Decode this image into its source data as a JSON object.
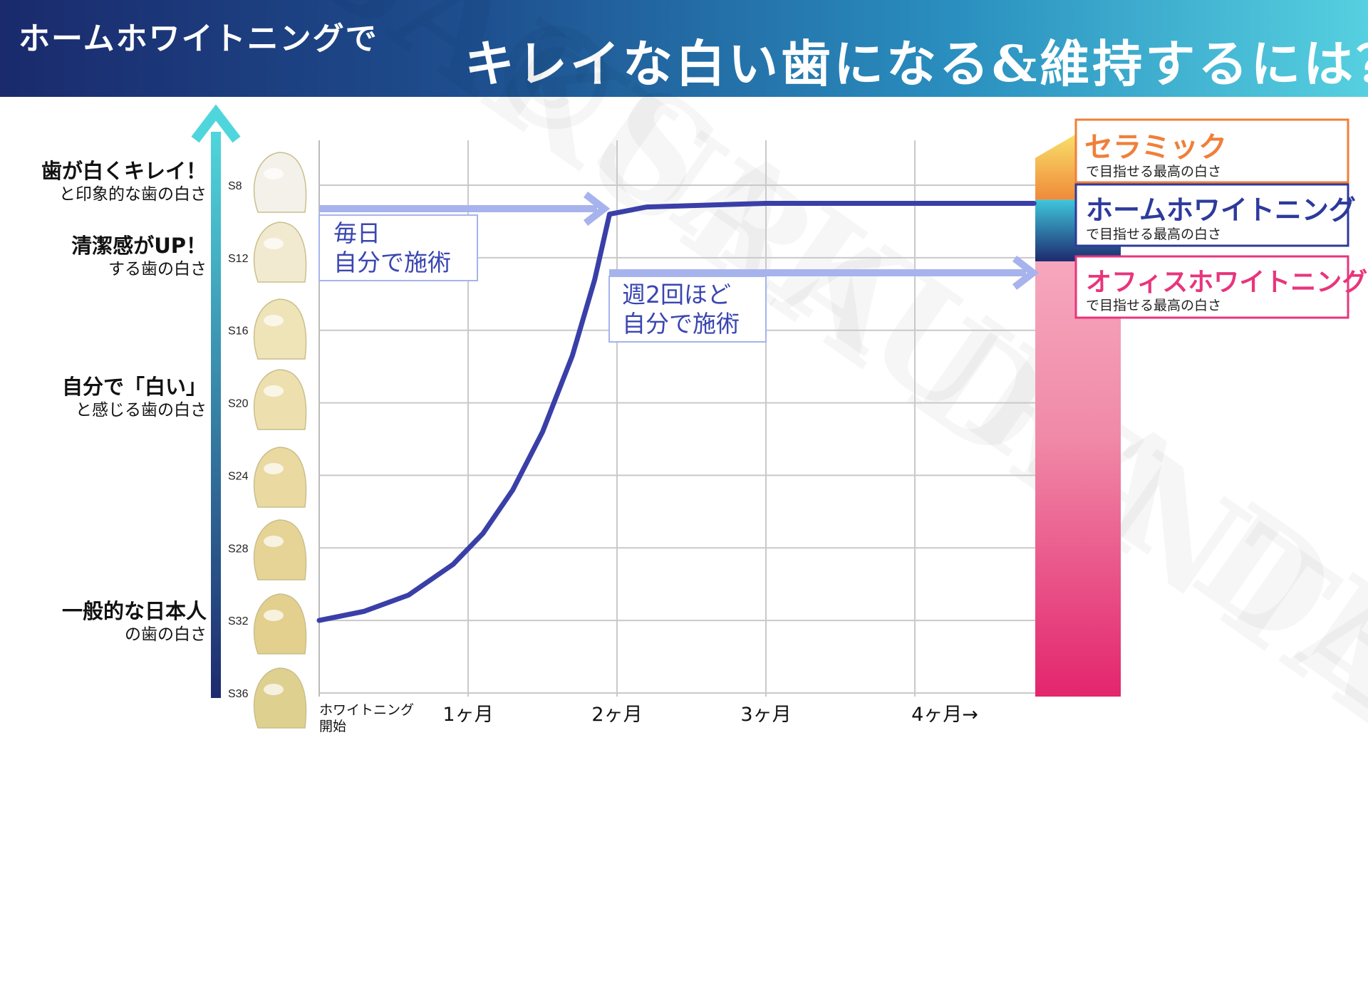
{
  "header": {
    "subtitle": "ホームホワイトニングで",
    "title": "キレイな白い歯になる&維持するには？"
  },
  "watermark": "©SAKURA DENTAL",
  "colors": {
    "curve": "#3a3fa8",
    "arrow": "#a7b3ec",
    "axis_top": "#4fd6dc",
    "axis_bottom": "#1d2a6e",
    "ceramic": "#f07f3a",
    "home": "#2d3a9c",
    "office": "#e8357c"
  },
  "left_labels": [
    {
      "main": "歯が白くキレイ！",
      "sub": "と印象的な歯の白さ"
    },
    {
      "main": "清潔感がUP！",
      "sub": "する歯の白さ"
    },
    {
      "main": "自分で「白い」",
      "sub": "と感じる歯の白さ"
    },
    {
      "main": "一般的な日本人",
      "sub": "の歯の白さ"
    }
  ],
  "annotations": {
    "daily_line1": "毎日",
    "daily_line2": "自分で施術",
    "weekly_line1": "週2回ほど",
    "weekly_line2": "自分で施術"
  },
  "legend": {
    "ceramic_title": "セラミック",
    "ceramic_sub": "で目指せる最高の白さ",
    "home_title": "ホームホワイトニング",
    "home_sub": "で目指せる最高の白さ",
    "office_title": "オフィスホワイトニング",
    "office_sub": "で目指せる最高の白さ"
  },
  "chart_data": {
    "type": "line",
    "x_label_start_line1": "ホワイトニング",
    "x_label_start_line2": "開始",
    "x_ticks": [
      "1ヶ月",
      "2ヶ月",
      "3ヶ月",
      "4ヶ月→"
    ],
    "y_ticks": [
      "S8",
      "S12",
      "S16",
      "S20",
      "S24",
      "S28",
      "S32",
      "S36"
    ],
    "xlim": [
      0,
      4.8
    ],
    "ylim": [
      36,
      6
    ],
    "series": [
      {
        "x": [
          0,
          0.3,
          0.6,
          0.9,
          1.1,
          1.3,
          1.5,
          1.7,
          1.85,
          1.95,
          2.2,
          3,
          4,
          4.8
        ],
        "y": [
          32,
          31.5,
          30.6,
          28.9,
          27.2,
          24.8,
          21.6,
          17.4,
          13.2,
          9.6,
          9.2,
          9,
          9,
          9
        ]
      }
    ],
    "shade_targets": {
      "ceramic": 6.5,
      "home": 8.8,
      "office": 12.2
    },
    "grid": true
  }
}
